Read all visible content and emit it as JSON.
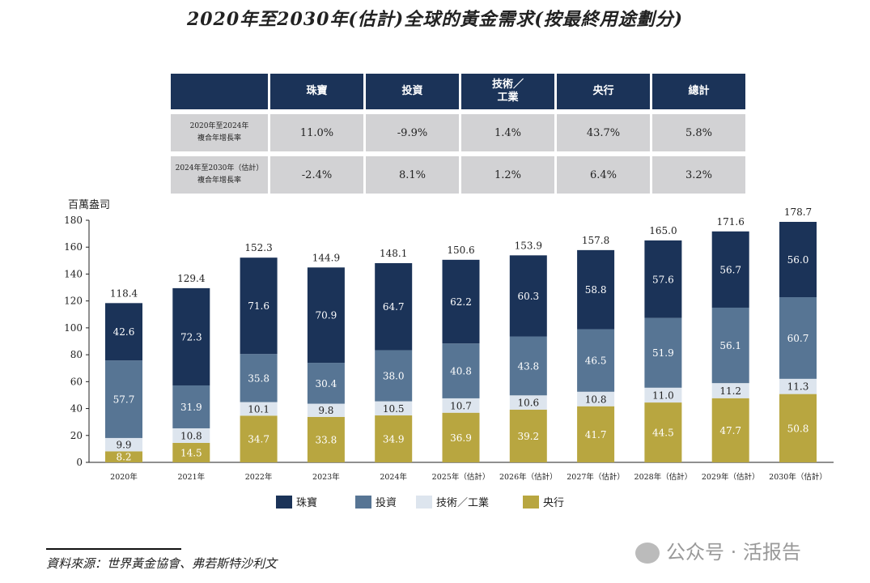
{
  "title": "2020年至2030年(估計)全球的黃金需求(按最終用途劃分)",
  "table": {
    "headers": [
      "",
      "珠寶",
      "投資",
      "技術／\n工業",
      "央行",
      "總計"
    ],
    "rows": [
      {
        "label": [
          "2020年至2024年",
          "複合年增長率"
        ],
        "values": [
          "11.0%",
          "-9.9%",
          "1.4%",
          "43.7%",
          "5.8%"
        ]
      },
      {
        "label": [
          "2024年至2030年（估計）",
          "複合年增長率"
        ],
        "values": [
          "-2.4%",
          "8.1%",
          "1.2%",
          "6.4%",
          "3.2%"
        ]
      }
    ]
  },
  "chart_data": {
    "type": "bar",
    "stacked": true,
    "ylabel": "百萬盎司",
    "ylim": [
      0,
      180
    ],
    "yticks": [
      0,
      20,
      40,
      60,
      80,
      100,
      120,
      140,
      160,
      180
    ],
    "categories": [
      "2020年",
      "2021年",
      "2022年",
      "2023年",
      "2024年",
      "2025年（估計）",
      "2026年（估計）",
      "2027年（估計）",
      "2028年（估計）",
      "2029年（估計）",
      "2030年（估計）"
    ],
    "series": [
      {
        "name": "央行",
        "color": "#b8a640",
        "values": [
          8.2,
          14.5,
          34.7,
          33.8,
          34.9,
          36.9,
          39.2,
          41.7,
          44.5,
          47.7,
          50.8
        ]
      },
      {
        "name": "技術／工業",
        "color": "#dde5ee",
        "values": [
          9.9,
          10.8,
          10.1,
          9.8,
          10.5,
          10.7,
          10.6,
          10.8,
          11.0,
          11.2,
          11.3
        ]
      },
      {
        "name": "投資",
        "color": "#577594",
        "values": [
          57.7,
          31.9,
          35.8,
          30.4,
          38.0,
          40.8,
          43.8,
          46.5,
          51.9,
          56.1,
          60.7
        ]
      },
      {
        "name": "珠寶",
        "color": "#1b3358",
        "values": [
          42.6,
          72.3,
          71.6,
          70.9,
          64.7,
          62.2,
          60.3,
          58.8,
          57.6,
          56.7,
          56.0
        ]
      }
    ],
    "totals": [
      118.4,
      129.4,
      152.3,
      144.9,
      148.1,
      150.6,
      153.9,
      157.8,
      165.0,
      171.6,
      178.7
    ],
    "legend": [
      "珠寶",
      "投資",
      "技術／工業",
      "央行"
    ],
    "legend_position": "bottom",
    "grid": false
  },
  "source": "資料來源：世界黃金協會、弗若斯特沙利文",
  "watermark": "公众号 · 活报告"
}
